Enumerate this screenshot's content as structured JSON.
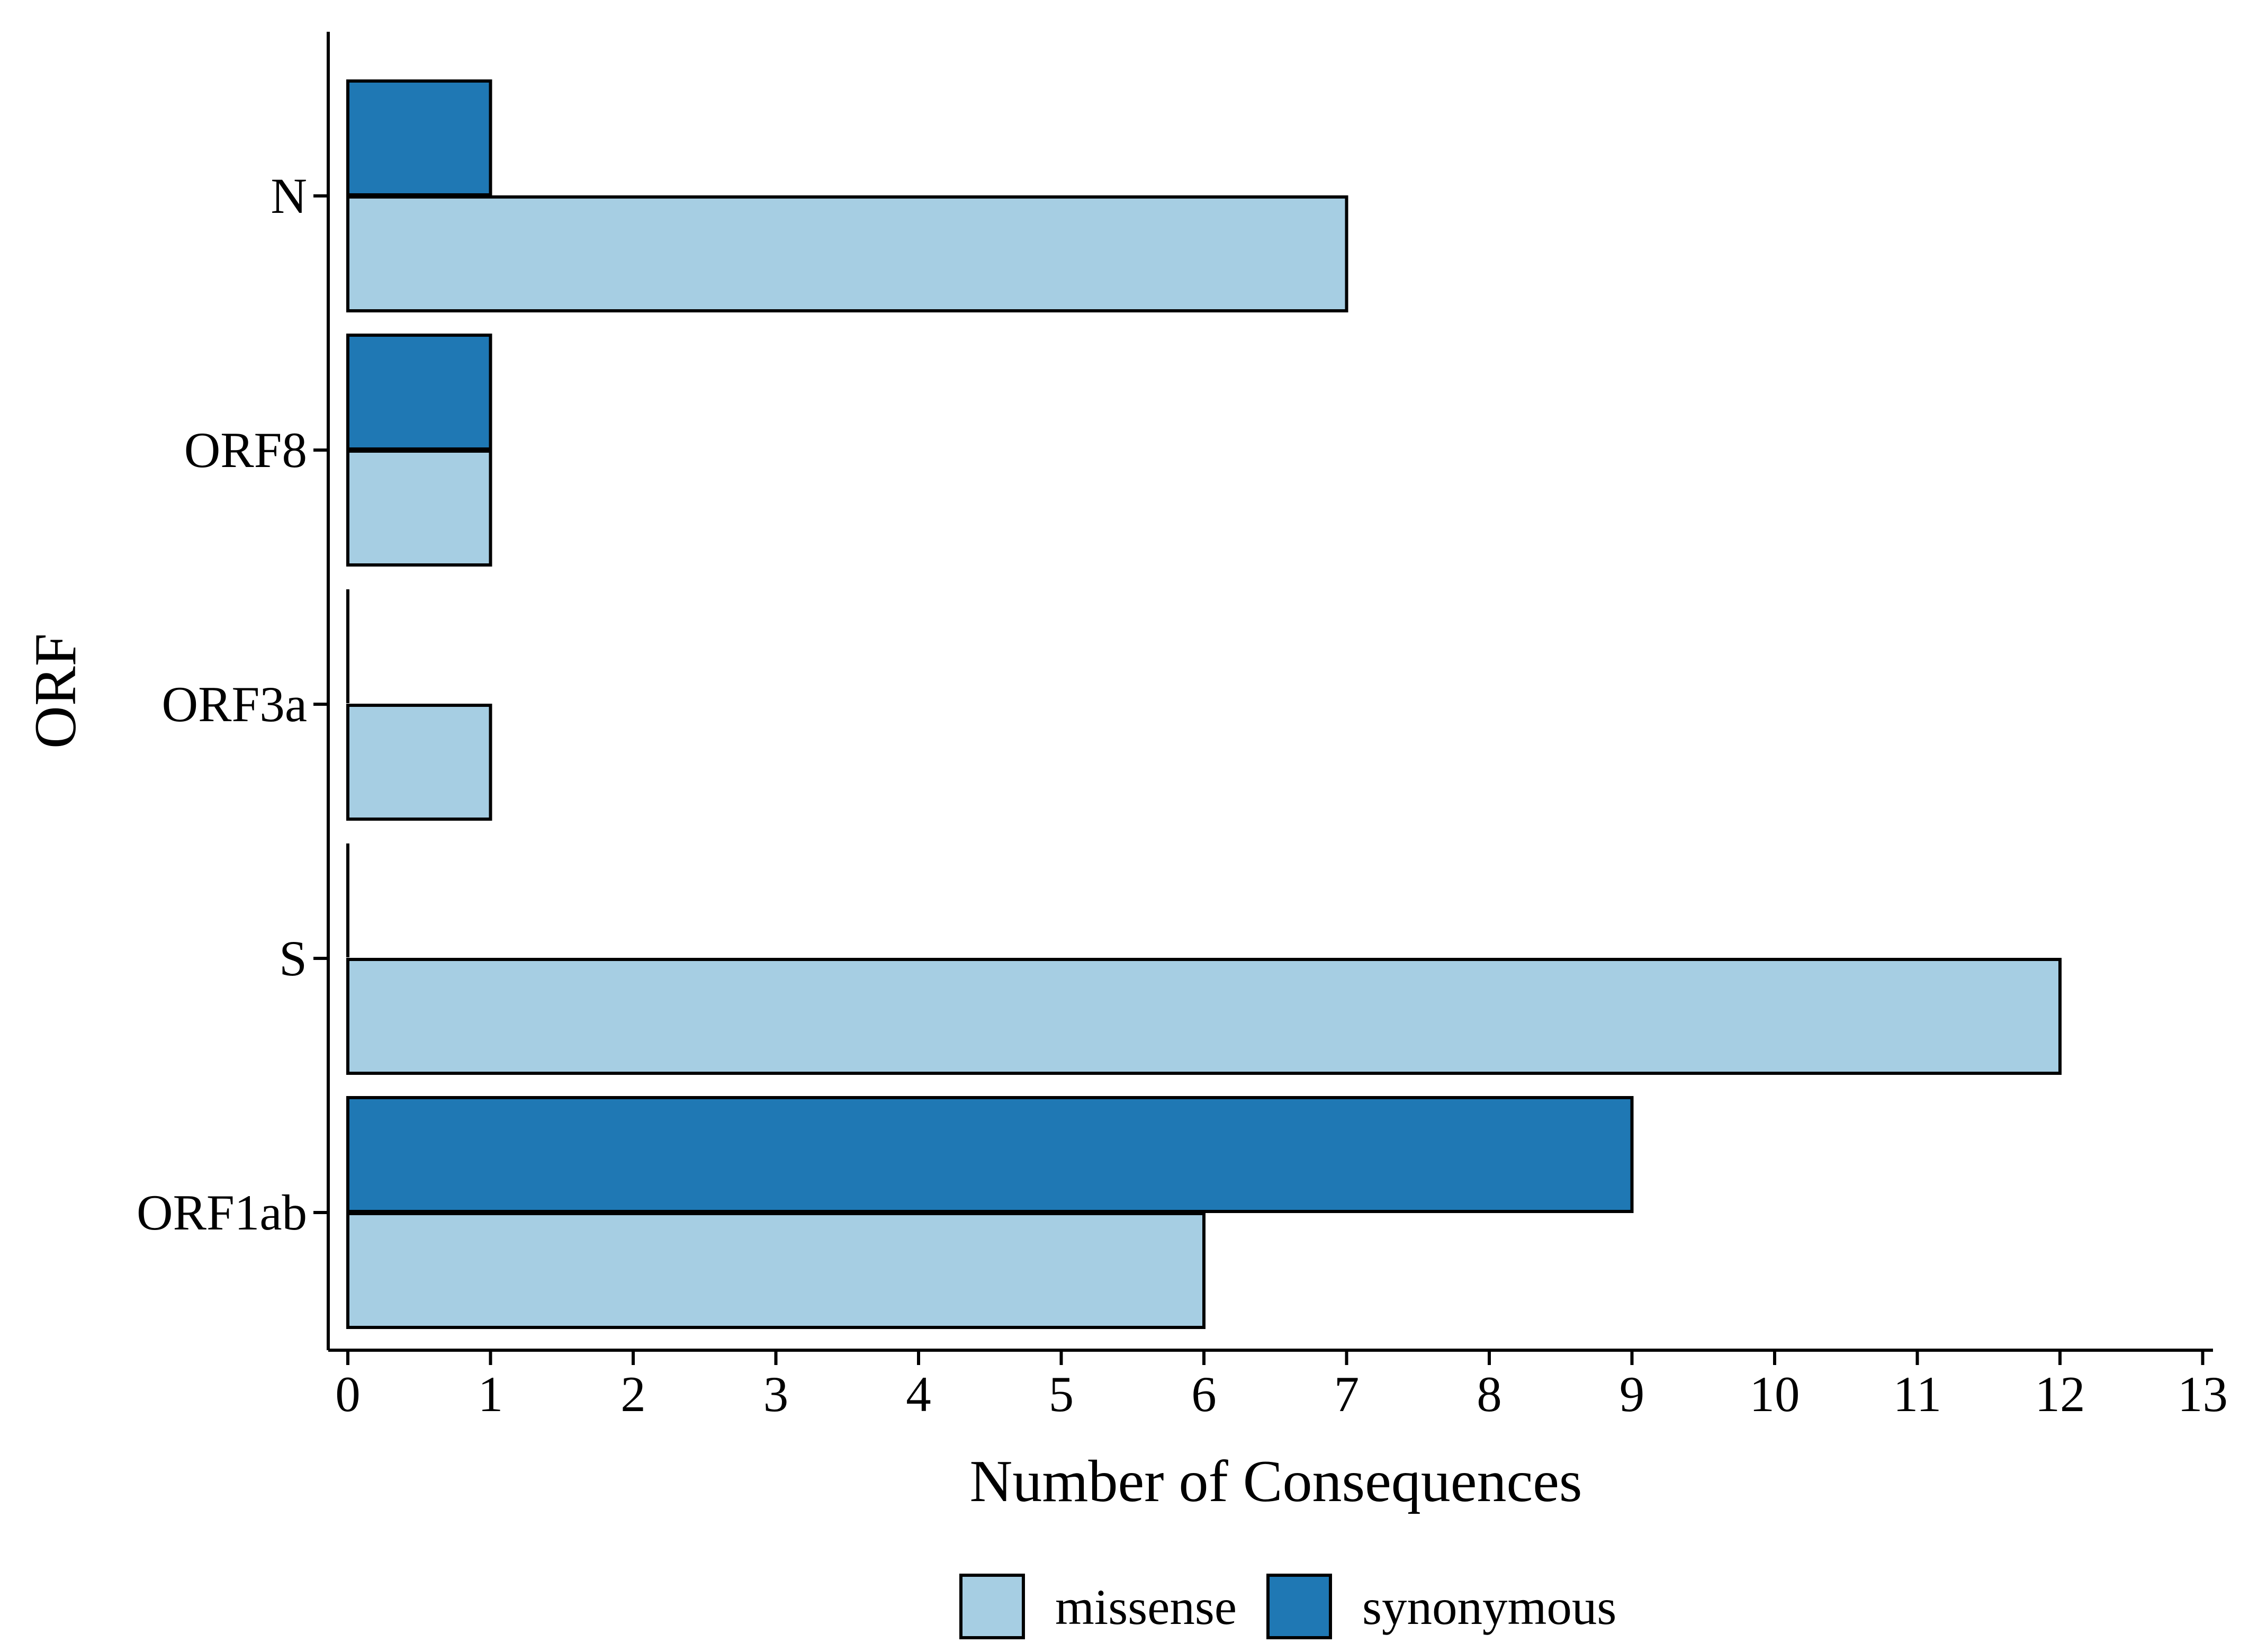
{
  "chart_data": {
    "type": "bar",
    "orientation": "horizontal",
    "categories": [
      "ORF1ab",
      "S",
      "ORF3a",
      "ORF8",
      "N"
    ],
    "series": [
      {
        "name": "missense",
        "values": [
          6,
          12,
          1,
          1,
          7
        ],
        "color": "#a6cee3"
      },
      {
        "name": "synonymous",
        "values": [
          9,
          0,
          0,
          1,
          1
        ],
        "color": "#1f78b4"
      }
    ],
    "xlabel": "Number of Consequences",
    "ylabel": "ORF",
    "xlim": [
      0,
      13
    ],
    "xticks": [
      "0",
      "1",
      "2",
      "3",
      "4",
      "5",
      "6",
      "7",
      "8",
      "9",
      "10",
      "11",
      "12",
      "13"
    ],
    "grid": false,
    "legend_position": "bottom"
  }
}
